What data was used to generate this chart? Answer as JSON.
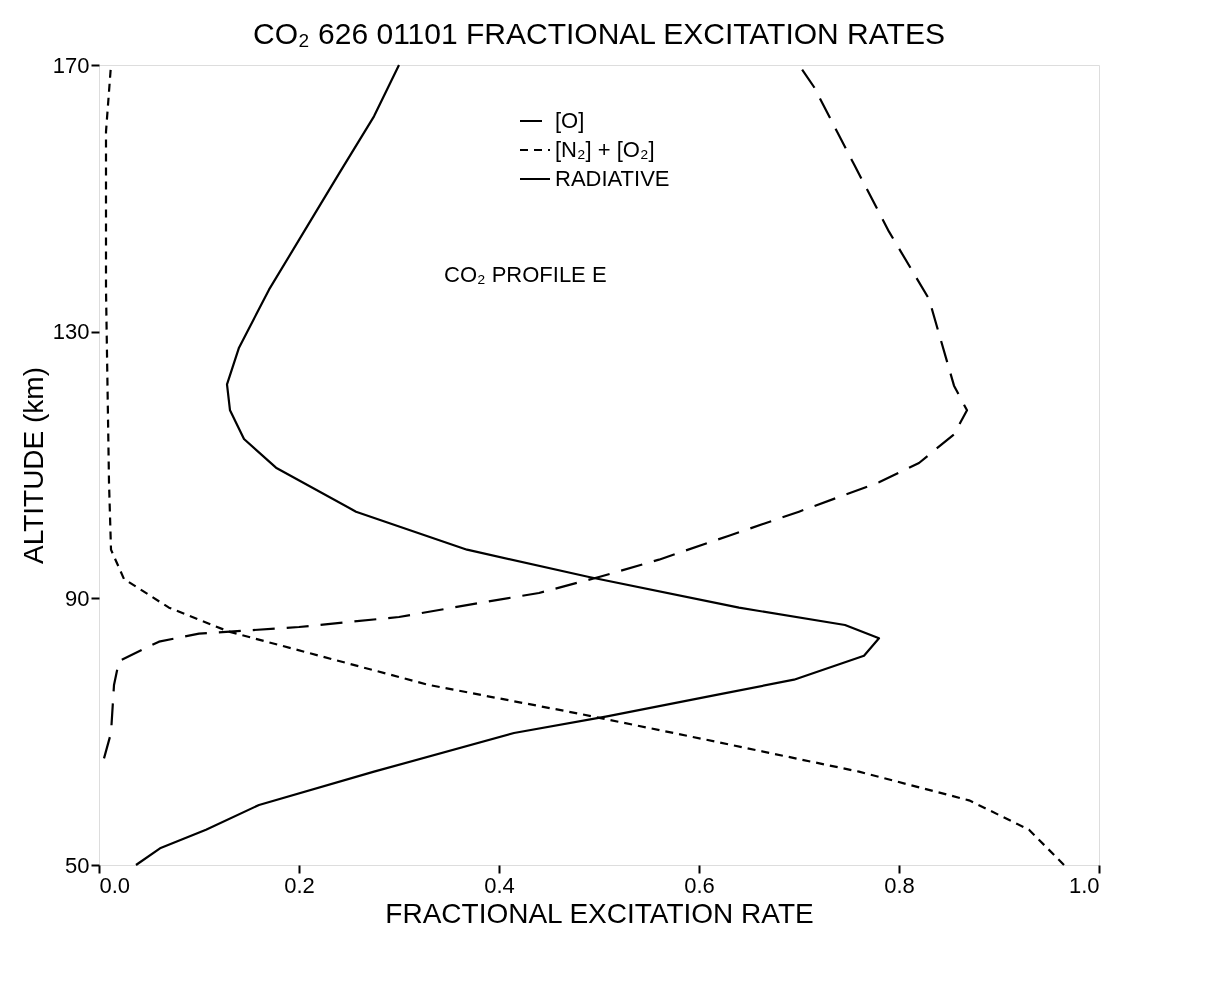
{
  "chart_data": {
    "type": "line",
    "title": "CO₂ 626 01101 FRACTIONAL EXCITATION RATES",
    "xlabel": "FRACTIONAL EXCITATION RATE",
    "ylabel": "ALTITUDE (km)",
    "xlim": [
      0,
      1
    ],
    "xticks": [
      {
        "value": 0,
        "label": "0.0"
      },
      0.2,
      0.4,
      0.6,
      0.8,
      {
        "value": 1,
        "label": "1.0"
      }
    ],
    "ylim": [
      50,
      170
    ],
    "yticks": [
      50,
      90,
      130,
      170
    ],
    "grid": false,
    "legend": "top",
    "annotations": [
      "CO₂ PROFILE E"
    ],
    "series": [
      {
        "name": "[O]",
        "color": "#000000",
        "line_style": "longdash",
        "x": [
          0.005,
          0.012,
          0.015,
          0.02,
          0.06,
          0.1,
          0.2,
          0.3,
          0.38,
          0.44,
          0.5,
          0.56,
          0.63,
          0.7,
          0.78,
          0.82,
          0.855,
          0.868,
          0.855,
          0.83,
          0.79,
          0.755,
          0.715,
          0.7
        ],
        "values": [
          66,
          69.8,
          77,
          80.6,
          83.5,
          84.7,
          85.7,
          87.2,
          89.3,
          90.8,
          93.2,
          95.8,
          99.4,
          103,
          107.4,
          110.3,
          114.6,
          118.2,
          121.9,
          134.9,
          145,
          155.1,
          166.7,
          170
        ]
      },
      {
        "name": "[N₂] + [O₂]",
        "color": "#000000",
        "line_style": "dashed",
        "x": [
          0.965,
          0.93,
          0.87,
          0.76,
          0.62,
          0.48,
          0.33,
          0.22,
          0.13,
          0.07,
          0.025,
          0.012,
          0.01,
          0.007,
          0.007,
          0.012
        ],
        "values": [
          50,
          55.3,
          59.7,
          64,
          68.4,
          72.7,
          77,
          81.4,
          85,
          88.6,
          92.9,
          97.3,
          107.4,
          136.3,
          160,
          170
        ]
      },
      {
        "name": "RADIATIVE",
        "color": "#000000",
        "line_style": "solid",
        "x": [
          0.037,
          0.061,
          0.107,
          0.16,
          0.275,
          0.415,
          0.508,
          0.62,
          0.695,
          0.765,
          0.78,
          0.746,
          0.64,
          0.49,
          0.368,
          0.257,
          0.177,
          0.145,
          0.131,
          0.128,
          0.14,
          0.17,
          0.205,
          0.24,
          0.275,
          0.3
        ],
        "values": [
          50,
          52.5,
          55.3,
          59,
          64,
          69.8,
          72.3,
          75.6,
          77.8,
          81.4,
          84,
          86,
          88.6,
          93.2,
          97.3,
          103,
          109.6,
          113.9,
          118.2,
          122.1,
          127.6,
          136.3,
          145,
          153.7,
          162.3,
          170
        ]
      }
    ]
  }
}
